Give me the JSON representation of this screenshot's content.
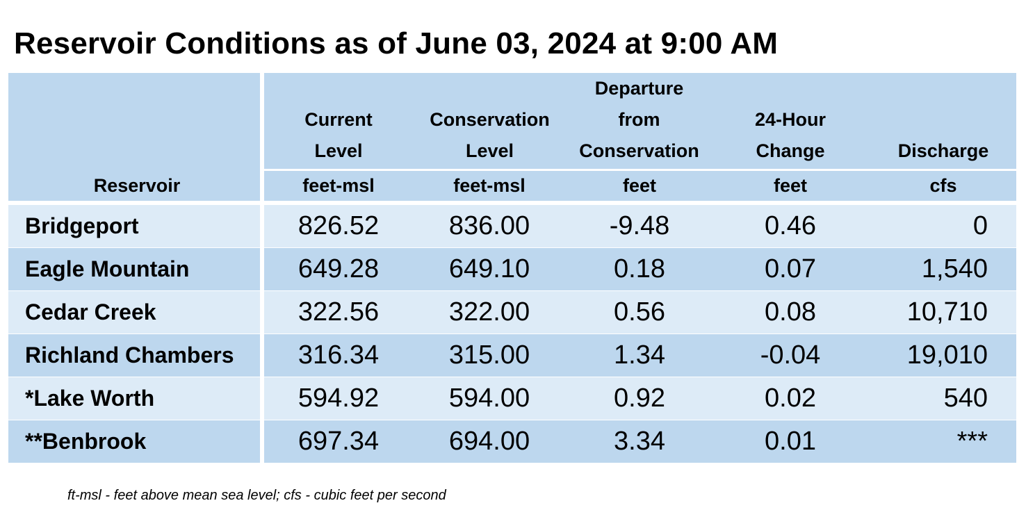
{
  "title": "Reservoir Conditions as of June 03, 2024 at 9:00 AM",
  "header": {
    "reservoir": "Reservoir",
    "current": [
      "Current",
      "Level"
    ],
    "conservation": [
      "Conservation",
      "Level"
    ],
    "departure": [
      "Departure",
      "from",
      "Conservation"
    ],
    "change": [
      "24-Hour",
      "Change"
    ],
    "discharge": [
      "Discharge"
    ],
    "units": {
      "current": "feet-msl",
      "conservation": "feet-msl",
      "departure": "feet",
      "change": "feet",
      "discharge": "cfs"
    }
  },
  "rows": [
    {
      "name": "Bridgeport",
      "current": "826.52",
      "conservation": "836.00",
      "departure": "-9.48",
      "change": "0.46",
      "discharge": "0"
    },
    {
      "name": "Eagle Mountain",
      "current": "649.28",
      "conservation": "649.10",
      "departure": "0.18",
      "change": "0.07",
      "discharge": "1,540"
    },
    {
      "name": "Cedar Creek",
      "current": "322.56",
      "conservation": "322.00",
      "departure": "0.56",
      "change": "0.08",
      "discharge": "10,710"
    },
    {
      "name": "Richland Chambers",
      "current": "316.34",
      "conservation": "315.00",
      "departure": "1.34",
      "change": "-0.04",
      "discharge": "19,010"
    },
    {
      "name": "*Lake Worth",
      "current": "594.92",
      "conservation": "594.00",
      "departure": "0.92",
      "change": "0.02",
      "discharge": "540"
    },
    {
      "name": "**Benbrook",
      "current": "697.34",
      "conservation": "694.00",
      "departure": "3.34",
      "change": "0.01",
      "discharge": "***"
    }
  ],
  "footnote": "ft-msl - feet above mean sea level; cfs - cubic feet per second"
}
